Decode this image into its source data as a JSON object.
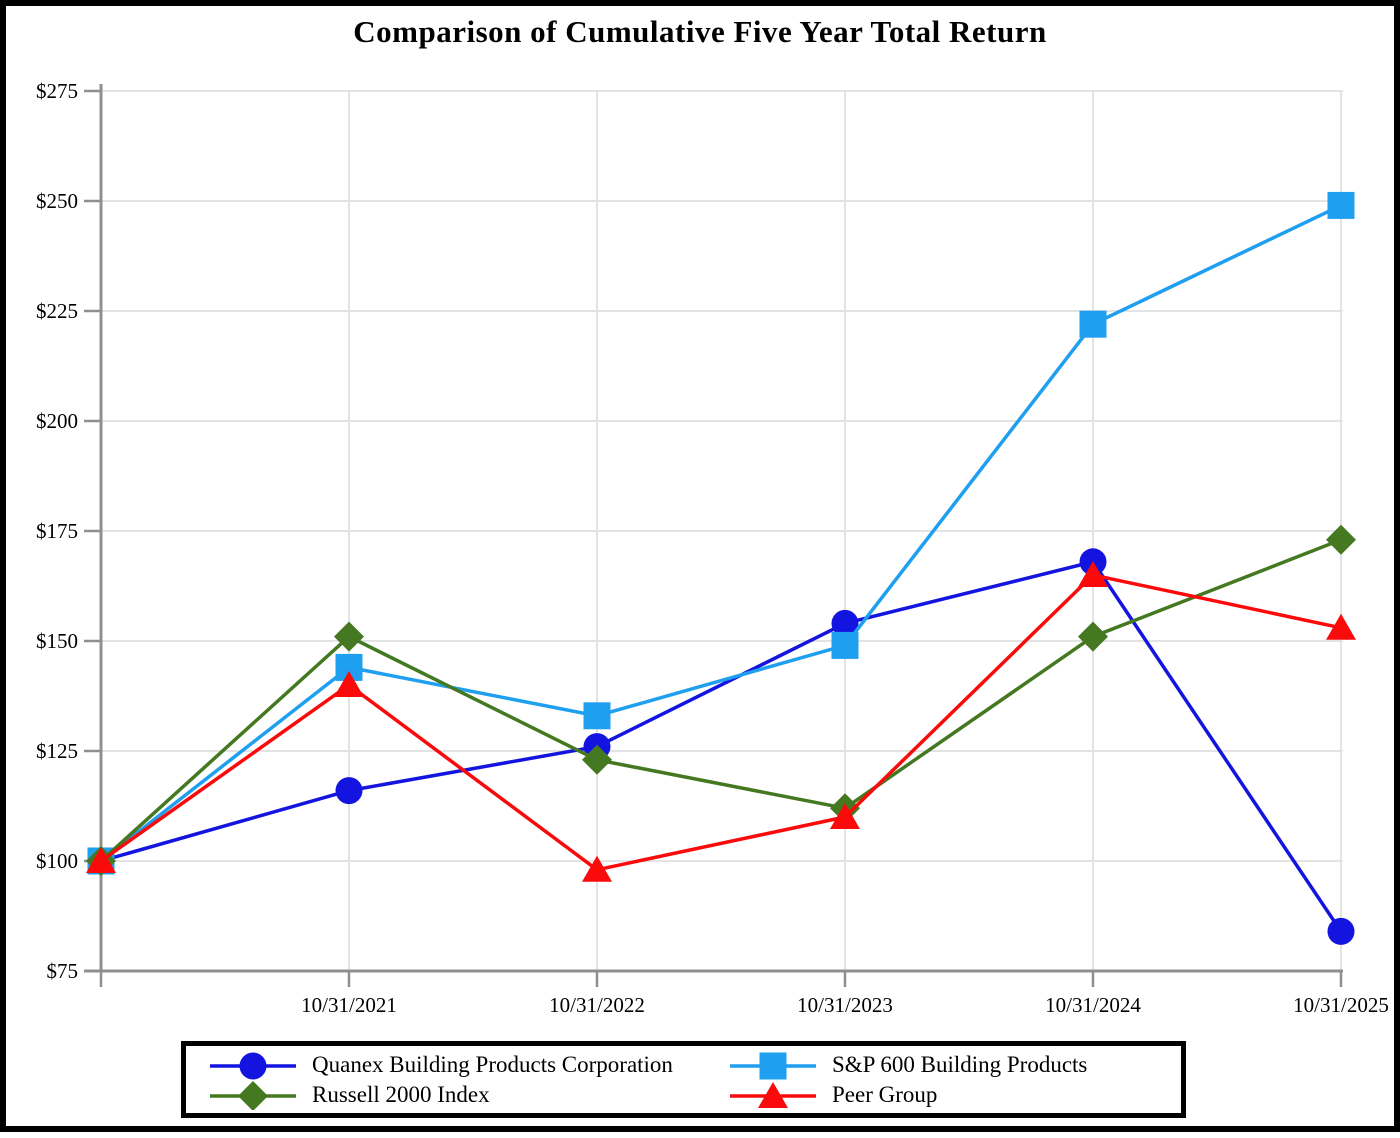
{
  "title": "Comparison of Cumulative Five Year Total Return",
  "colors": {
    "background": "#FFFFFF",
    "grid": "#E3E3E3",
    "axis": "#8F8F8F",
    "text": "#000000",
    "quanex_blue": "#1414E0",
    "sp600_blue": "#1E9FEF",
    "russell_green": "#447821",
    "peer_red": "#FA0A0A"
  },
  "chart_data": {
    "type": "line",
    "title": "Comparison of Cumulative Five Year Total Return",
    "xlabel": "",
    "ylabel": "",
    "categories": [
      "",
      "10/31/2021",
      "10/31/2022",
      "10/31/2023",
      "10/31/2024",
      "10/31/2025"
    ],
    "ylim": [
      75,
      275
    ],
    "y_ticks": [
      75,
      100,
      125,
      150,
      175,
      200,
      225,
      250,
      275
    ],
    "y_tick_labels": [
      "$75",
      "$100",
      "$125",
      "$150",
      "$175",
      "$200",
      "$225",
      "$250",
      "$275"
    ],
    "grid": true,
    "legend_position": "bottom",
    "series": [
      {
        "name": "Quanex Building Products Corporation",
        "marker": "circle",
        "color": "#1414E0",
        "values": [
          100,
          116,
          126,
          154,
          168,
          84
        ]
      },
      {
        "name": "S&P 600 Building Products",
        "marker": "square",
        "color": "#1E9FEF",
        "values": [
          100,
          144,
          133,
          149,
          222,
          249
        ]
      },
      {
        "name": "Russell 2000 Index",
        "marker": "diamond",
        "color": "#447821",
        "values": [
          100,
          151,
          123,
          112,
          151,
          173
        ]
      },
      {
        "name": "Peer Group",
        "marker": "triangle",
        "color": "#FA0A0A",
        "values": [
          100,
          140,
          98,
          110,
          165,
          153
        ]
      }
    ]
  }
}
